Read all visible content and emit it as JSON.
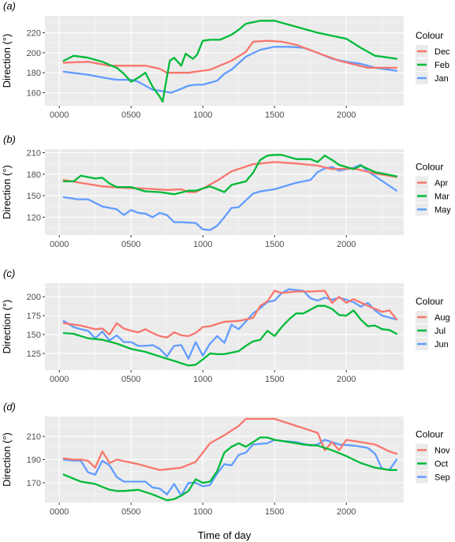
{
  "x_axis_label": "Time of day",
  "y_axis_label": "Direction (°)",
  "legend_title": "Colour",
  "colors": {
    "red": "#F8766D",
    "green": "#00BA38",
    "blue": "#619CFF",
    "panel_bg": "#EBEBEB",
    "grid": "#FFFFFF"
  },
  "chart_data": [
    {
      "type": "line",
      "panel_label": "(a)",
      "xlabel": "",
      "ylabel": "Direction (°)",
      "xlim": [
        -100,
        2400
      ],
      "ylim": [
        147,
        237
      ],
      "x_ticks": [
        0,
        500,
        1000,
        1500,
        2000
      ],
      "x_tick_labels": [
        "0000",
        "0500",
        "1000",
        "1500",
        "2000"
      ],
      "y_ticks": [
        160,
        180,
        200,
        220
      ],
      "y_tick_labels": [
        "160",
        "180",
        "200",
        "220"
      ],
      "legend": [
        "Dec",
        "Feb",
        "Jan"
      ],
      "series": [
        {
          "name": "Dec",
          "color": "#F8766D",
          "x": [
            30,
            200,
            350,
            500,
            600,
            700,
            750,
            900,
            1050,
            1200,
            1300,
            1350,
            1450,
            1550,
            1650,
            1800,
            1950,
            2150,
            2350
          ],
          "y": [
            190,
            191,
            187,
            187,
            187,
            184,
            180,
            180,
            183,
            192,
            201,
            211,
            212,
            211,
            208,
            200,
            192,
            185,
            185
          ]
        },
        {
          "name": "Feb",
          "color": "#00BA38",
          "x": [
            30,
            100,
            200,
            300,
            400,
            450,
            500,
            550,
            600,
            650,
            700,
            720,
            770,
            800,
            850,
            880,
            930,
            960,
            1000,
            1050,
            1120,
            1200,
            1250,
            1300,
            1400,
            1500,
            1600,
            1800,
            2000,
            2100,
            2200,
            2250,
            2350
          ],
          "y": [
            192,
            197,
            195,
            191,
            185,
            179,
            171,
            175,
            180,
            166,
            156,
            151,
            192,
            195,
            187,
            199,
            194,
            198,
            212,
            213,
            213,
            218,
            223,
            229,
            232,
            232,
            228,
            220,
            214,
            205,
            197,
            196,
            194
          ]
        },
        {
          "name": "Jan",
          "color": "#619CFF",
          "x": [
            30,
            200,
            350,
            400,
            500,
            550,
            650,
            700,
            780,
            850,
            900,
            950,
            1000,
            1050,
            1100,
            1150,
            1200,
            1300,
            1400,
            1500,
            1600,
            1700,
            1800,
            1900,
            2000,
            2100,
            2200,
            2350
          ],
          "y": [
            181,
            178,
            174,
            173,
            173,
            171,
            163,
            162,
            160,
            164,
            167,
            168,
            168,
            170,
            172,
            179,
            183,
            196,
            203,
            206,
            206,
            205,
            200,
            194,
            191,
            189,
            185,
            182
          ]
        }
      ]
    },
    {
      "type": "line",
      "panel_label": "(b)",
      "xlabel": "",
      "ylabel": "Direction (°)",
      "xlim": [
        -100,
        2400
      ],
      "ylim": [
        95,
        215
      ],
      "x_ticks": [
        0,
        500,
        1000,
        1500,
        2000
      ],
      "x_tick_labels": [
        "0000",
        "0500",
        "1000",
        "1500",
        "2000"
      ],
      "y_ticks": [
        120,
        150,
        180,
        210
      ],
      "y_tick_labels": [
        "120",
        "150",
        "180",
        "210"
      ],
      "legend": [
        "Apr",
        "Mar",
        "May"
      ],
      "series": [
        {
          "name": "Apr",
          "color": "#F8766D",
          "x": [
            30,
            150,
            300,
            450,
            600,
            750,
            850,
            900,
            950,
            1000,
            1100,
            1200,
            1350,
            1500,
            1650,
            1800,
            1900,
            2050,
            2200,
            2350
          ],
          "y": [
            172,
            168,
            163,
            161,
            160,
            158,
            159,
            155,
            155,
            160,
            171,
            184,
            194,
            197,
            195,
            192,
            187,
            188,
            181,
            176
          ]
        },
        {
          "name": "Mar",
          "color": "#00BA38",
          "x": [
            30,
            100,
            150,
            250,
            300,
            350,
            400,
            500,
            600,
            700,
            800,
            900,
            950,
            1050,
            1150,
            1200,
            1300,
            1350,
            1400,
            1450,
            1500,
            1550,
            1650,
            1750,
            1800,
            1850,
            1900,
            1950,
            2050,
            2100,
            2200,
            2350
          ],
          "y": [
            170,
            170,
            178,
            174,
            175,
            167,
            162,
            162,
            156,
            155,
            152,
            157,
            157,
            163,
            155,
            165,
            170,
            182,
            200,
            206,
            207,
            207,
            201,
            201,
            197,
            206,
            200,
            193,
            187,
            192,
            183,
            177
          ]
        },
        {
          "name": "May",
          "color": "#619CFF",
          "x": [
            30,
            130,
            200,
            250,
            300,
            400,
            450,
            500,
            550,
            600,
            650,
            700,
            750,
            800,
            850,
            950,
            1000,
            1050,
            1100,
            1150,
            1200,
            1250,
            1350,
            1400,
            1500,
            1650,
            1750,
            1800,
            1850,
            1900,
            1950,
            2050,
            2100,
            2150,
            2350
          ],
          "y": [
            148,
            145,
            145,
            140,
            135,
            131,
            123,
            130,
            126,
            125,
            120,
            126,
            123,
            113,
            113,
            112,
            103,
            102,
            108,
            120,
            133,
            134,
            153,
            156,
            159,
            168,
            172,
            183,
            188,
            190,
            185,
            189,
            193,
            184,
            157
          ]
        }
      ]
    },
    {
      "type": "line",
      "panel_label": "(c)",
      "xlabel": "",
      "ylabel": "Direction (°)",
      "xlim": [
        -100,
        2400
      ],
      "ylim": [
        103,
        218
      ],
      "x_ticks": [
        0,
        500,
        1000,
        1500,
        2000
      ],
      "x_tick_labels": [
        "0000",
        "0500",
        "1000",
        "1500",
        "2000"
      ],
      "y_ticks": [
        125,
        150,
        175,
        200
      ],
      "y_tick_labels": [
        "125",
        "150",
        "175",
        "200"
      ],
      "legend": [
        "Aug",
        "Jul",
        "Jun"
      ],
      "series": [
        {
          "name": "Aug",
          "color": "#F8766D",
          "x": [
            30,
            150,
            250,
            300,
            350,
            400,
            450,
            500,
            550,
            600,
            650,
            700,
            750,
            800,
            850,
            900,
            950,
            1000,
            1050,
            1150,
            1250,
            1350,
            1400,
            1450,
            1500,
            1550,
            1650,
            1750,
            1850,
            1900,
            1950,
            2000,
            2050,
            2150,
            2250,
            2300,
            2350
          ],
          "y": [
            165,
            162,
            157,
            158,
            150,
            165,
            158,
            155,
            153,
            157,
            152,
            148,
            146,
            153,
            149,
            148,
            152,
            160,
            161,
            167,
            168,
            172,
            188,
            194,
            208,
            205,
            207,
            207,
            208,
            192,
            200,
            192,
            197,
            188,
            180,
            182,
            170
          ]
        },
        {
          "name": "Jul",
          "color": "#00BA38",
          "x": [
            30,
            100,
            200,
            300,
            400,
            500,
            600,
            700,
            800,
            900,
            950,
            1000,
            1050,
            1100,
            1150,
            1250,
            1300,
            1350,
            1400,
            1450,
            1500,
            1550,
            1600,
            1650,
            1700,
            1800,
            1850,
            1900,
            1950,
            2000,
            2050,
            2100,
            2150,
            2200,
            2250,
            2300,
            2350
          ],
          "y": [
            152,
            151,
            145,
            143,
            138,
            131,
            127,
            121,
            115,
            109,
            110,
            117,
            125,
            124,
            124,
            128,
            135,
            141,
            143,
            155,
            148,
            160,
            170,
            178,
            178,
            188,
            188,
            184,
            176,
            175,
            182,
            170,
            161,
            162,
            157,
            156,
            151
          ]
        },
        {
          "name": "Jun",
          "color": "#619CFF",
          "x": [
            30,
            100,
            150,
            200,
            250,
            300,
            350,
            400,
            450,
            500,
            550,
            600,
            650,
            700,
            750,
            800,
            850,
            900,
            950,
            1000,
            1050,
            1100,
            1150,
            1200,
            1250,
            1350,
            1400,
            1450,
            1500,
            1550,
            1600,
            1650,
            1700,
            1750,
            1800,
            1850,
            1900,
            1950,
            2000,
            2050,
            2100,
            2150,
            2200,
            2250,
            2350
          ],
          "y": [
            168,
            160,
            157,
            155,
            145,
            154,
            142,
            149,
            140,
            140,
            135,
            135,
            136,
            131,
            121,
            135,
            136,
            118,
            140,
            122,
            138,
            148,
            139,
            163,
            157,
            178,
            185,
            193,
            195,
            205,
            210,
            209,
            208,
            198,
            195,
            199,
            196,
            199,
            196,
            193,
            187,
            192,
            182,
            175,
            170
          ]
        }
      ]
    },
    {
      "type": "line",
      "panel_label": "(d)",
      "xlabel": "Time of day",
      "ylabel": "Direction (°)",
      "xlim": [
        -100,
        2400
      ],
      "ylim": [
        153,
        227
      ],
      "x_ticks": [
        0,
        500,
        1000,
        1500,
        2000
      ],
      "x_tick_labels": [
        "0000",
        "0500",
        "1000",
        "1500",
        "2000"
      ],
      "y_ticks": [
        170,
        190,
        210
      ],
      "y_tick_labels": [
        "170",
        "190",
        "210"
      ],
      "legend": [
        "Nov",
        "Oct",
        "Sep"
      ],
      "series": [
        {
          "name": "Nov",
          "color": "#F8766D",
          "x": [
            30,
            100,
            150,
            200,
            250,
            300,
            350,
            400,
            550,
            700,
            850,
            950,
            1050,
            1150,
            1250,
            1300,
            1450,
            1500,
            1550,
            1700,
            1800,
            1850,
            1900,
            1950,
            2000,
            2050,
            2100,
            2200,
            2300,
            2350
          ],
          "y": [
            191,
            190,
            190,
            189,
            183,
            197,
            187,
            190,
            186,
            181,
            183,
            188,
            204,
            211,
            219,
            225,
            225,
            225,
            223,
            217,
            213,
            198,
            205,
            198,
            207,
            206,
            205,
            203,
            197,
            195
          ]
        },
        {
          "name": "Oct",
          "color": "#00BA38",
          "x": [
            30,
            150,
            250,
            350,
            400,
            450,
            550,
            650,
            750,
            800,
            850,
            900,
            950,
            1000,
            1050,
            1100,
            1150,
            1200,
            1250,
            1300,
            1400,
            1450,
            1500,
            1600,
            1700,
            1800,
            1900,
            2000,
            2100,
            2200,
            2300,
            2350
          ],
          "y": [
            177,
            171,
            169,
            164,
            163,
            163,
            164,
            160,
            155,
            156,
            159,
            163,
            173,
            170,
            171,
            180,
            196,
            201,
            204,
            201,
            209,
            209,
            207,
            205,
            203,
            202,
            198,
            193,
            187,
            183,
            181,
            181
          ]
        },
        {
          "name": "Sep",
          "color": "#619CFF",
          "x": [
            30,
            100,
            150,
            200,
            250,
            300,
            350,
            400,
            450,
            500,
            600,
            650,
            700,
            750,
            800,
            850,
            900,
            950,
            1000,
            1050,
            1100,
            1150,
            1200,
            1250,
            1300,
            1350,
            1450,
            1500,
            1550,
            1650,
            1750,
            1800,
            1850,
            1900,
            1950,
            2050,
            2150,
            2200,
            2250,
            2300,
            2350
          ],
          "y": [
            190,
            189,
            189,
            179,
            177,
            189,
            185,
            175,
            171,
            171,
            171,
            166,
            165,
            160,
            169,
            159,
            170,
            170,
            167,
            168,
            178,
            186,
            185,
            194,
            196,
            203,
            204,
            207,
            206,
            205,
            202,
            203,
            207,
            205,
            203,
            202,
            200,
            195,
            182,
            181,
            190
          ]
        }
      ]
    }
  ]
}
